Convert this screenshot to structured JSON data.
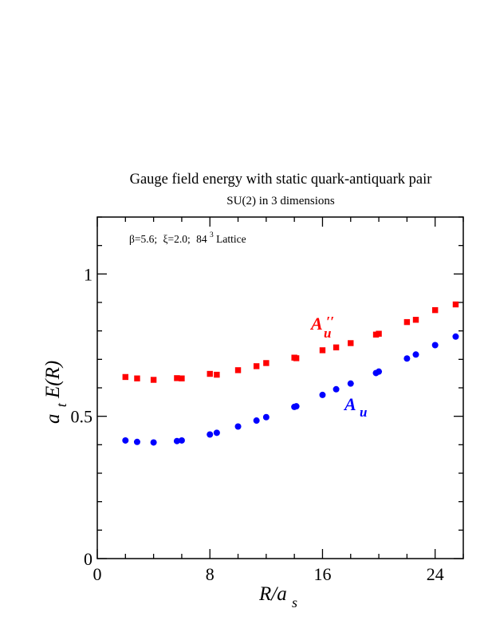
{
  "chart_data": {
    "type": "scatter",
    "title": "Gauge field energy with static quark-antiquark pair",
    "subtitle": "SU(2) in 3 dimensions",
    "annotation": {
      "beta": "β=5.6;",
      "xi": "ξ=2.0;",
      "lattice_base": "84",
      "lattice_exp": "3",
      "lattice_suffix": " Lattice"
    },
    "xlabel": {
      "main": "R/a",
      "sub": "s"
    },
    "ylabel": {
      "a": "a",
      "sub": "t",
      "rest": "E(R)"
    },
    "xlim": [
      0,
      26
    ],
    "ylim": [
      0,
      1.2
    ],
    "xticks": [
      0,
      8,
      16,
      24
    ],
    "xtick_labels": [
      "0",
      "8",
      "16",
      "24"
    ],
    "yticks": [
      0,
      0.5,
      1
    ],
    "ytick_labels": [
      "0",
      "0.5",
      "1"
    ],
    "grid": false,
    "series": [
      {
        "name": "A″u",
        "label_main": "A",
        "label_prime": "′′",
        "label_sub": "u",
        "color": "#ff0000",
        "marker": "square",
        "points": [
          [
            2,
            0.638
          ],
          [
            2.83,
            0.633
          ],
          [
            4,
            0.628
          ],
          [
            5.66,
            0.634
          ],
          [
            6,
            0.633
          ],
          [
            8,
            0.649
          ],
          [
            8.49,
            0.646
          ],
          [
            10,
            0.662
          ],
          [
            11.31,
            0.676
          ],
          [
            12,
            0.687
          ],
          [
            14,
            0.706
          ],
          [
            14.14,
            0.704
          ],
          [
            16,
            0.732
          ],
          [
            16.97,
            0.742
          ],
          [
            18,
            0.757
          ],
          [
            19.8,
            0.787
          ],
          [
            20,
            0.79
          ],
          [
            22,
            0.831
          ],
          [
            22.63,
            0.839
          ],
          [
            24,
            0.873
          ],
          [
            25.46,
            0.893
          ]
        ]
      },
      {
        "name": "Au",
        "label_main": "A",
        "label_prime": "",
        "label_sub": "u",
        "color": "#0000ff",
        "marker": "circle",
        "points": [
          [
            2,
            0.415
          ],
          [
            2.83,
            0.41
          ],
          [
            4,
            0.408
          ],
          [
            5.66,
            0.413
          ],
          [
            6,
            0.415
          ],
          [
            8,
            0.436
          ],
          [
            8.49,
            0.442
          ],
          [
            10,
            0.464
          ],
          [
            11.31,
            0.485
          ],
          [
            12,
            0.497
          ],
          [
            14,
            0.533
          ],
          [
            14.14,
            0.535
          ],
          [
            16,
            0.575
          ],
          [
            16.97,
            0.595
          ],
          [
            18,
            0.615
          ],
          [
            19.8,
            0.652
          ],
          [
            20,
            0.657
          ],
          [
            22,
            0.703
          ],
          [
            22.63,
            0.717
          ],
          [
            24,
            0.75
          ],
          [
            25.46,
            0.78
          ]
        ]
      }
    ]
  }
}
